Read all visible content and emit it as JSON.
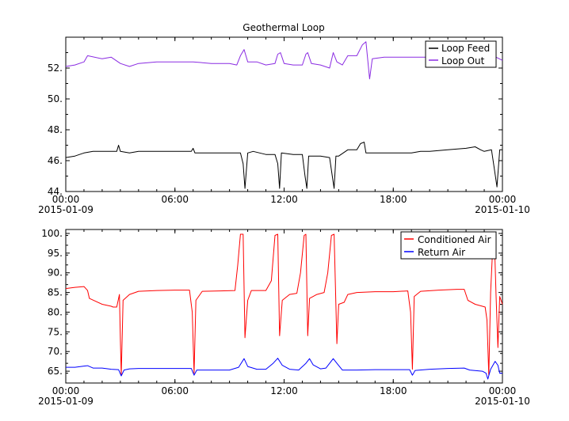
{
  "chart_data": [
    {
      "type": "line",
      "title": "Geothermal Loop",
      "xlabel": "",
      "ylabel": "",
      "x_ticks": [
        "00:00",
        "06:00",
        "12:00",
        "18:00",
        "00:00"
      ],
      "x_tick_dates": [
        "2015-01-09",
        "",
        "",
        "",
        "2015-01-10"
      ],
      "xlim_hours": [
        0,
        24
      ],
      "ylim": [
        44,
        54
      ],
      "y_ticks": [
        "44.",
        "46.",
        "48.",
        "50.",
        "52."
      ],
      "grid": false,
      "legend_position": "top-right",
      "series": [
        {
          "name": "Loop Feed",
          "color": "#000000",
          "points": [
            [
              0,
              46.2
            ],
            [
              0.5,
              46.3
            ],
            [
              1,
              46.5
            ],
            [
              1.5,
              46.6
            ],
            [
              2,
              46.6
            ],
            [
              2.8,
              46.6
            ],
            [
              2.9,
              47.0
            ],
            [
              3.0,
              46.6
            ],
            [
              3.5,
              46.5
            ],
            [
              4,
              46.6
            ],
            [
              5,
              46.6
            ],
            [
              6,
              46.6
            ],
            [
              6.9,
              46.6
            ],
            [
              7.0,
              46.8
            ],
            [
              7.1,
              46.5
            ],
            [
              8,
              46.5
            ],
            [
              9,
              46.5
            ],
            [
              9.6,
              46.5
            ],
            [
              9.75,
              45.8
            ],
            [
              9.85,
              44.2
            ],
            [
              10.0,
              46.5
            ],
            [
              10.3,
              46.6
            ],
            [
              11,
              46.4
            ],
            [
              11.5,
              46.4
            ],
            [
              11.65,
              45.8
            ],
            [
              11.75,
              44.2
            ],
            [
              11.85,
              46.5
            ],
            [
              12.5,
              46.4
            ],
            [
              13.0,
              46.4
            ],
            [
              13.15,
              45.0
            ],
            [
              13.25,
              44.2
            ],
            [
              13.35,
              46.3
            ],
            [
              14,
              46.3
            ],
            [
              14.5,
              46.2
            ],
            [
              14.65,
              45.0
            ],
            [
              14.75,
              44.2
            ],
            [
              14.85,
              46.3
            ],
            [
              15,
              46.3
            ],
            [
              15.5,
              46.7
            ],
            [
              16,
              46.7
            ],
            [
              16.2,
              47.1
            ],
            [
              16.4,
              47.2
            ],
            [
              16.5,
              46.5
            ],
            [
              17,
              46.5
            ],
            [
              18,
              46.5
            ],
            [
              19,
              46.5
            ],
            [
              19.5,
              46.6
            ],
            [
              20,
              46.6
            ],
            [
              21,
              46.7
            ],
            [
              22,
              46.8
            ],
            [
              22.5,
              46.9
            ],
            [
              22.8,
              46.7
            ],
            [
              23.0,
              46.6
            ],
            [
              23.4,
              46.7
            ],
            [
              23.55,
              45.5
            ],
            [
              23.7,
              44.3
            ],
            [
              23.85,
              46.7
            ],
            [
              24,
              46.7
            ]
          ]
        },
        {
          "name": "Loop Out",
          "color": "#8a2be2",
          "points": [
            [
              0,
              52.1
            ],
            [
              0.5,
              52.2
            ],
            [
              1,
              52.4
            ],
            [
              1.2,
              52.8
            ],
            [
              2,
              52.6
            ],
            [
              2.5,
              52.7
            ],
            [
              3,
              52.3
            ],
            [
              3.5,
              52.1
            ],
            [
              4,
              52.3
            ],
            [
              5,
              52.4
            ],
            [
              6,
              52.4
            ],
            [
              7,
              52.4
            ],
            [
              8,
              52.3
            ],
            [
              9,
              52.3
            ],
            [
              9.4,
              52.2
            ],
            [
              9.6,
              52.8
            ],
            [
              9.8,
              53.2
            ],
            [
              10.0,
              52.4
            ],
            [
              10.5,
              52.4
            ],
            [
              11,
              52.2
            ],
            [
              11.5,
              52.3
            ],
            [
              11.65,
              52.9
            ],
            [
              11.8,
              53.0
            ],
            [
              12.0,
              52.3
            ],
            [
              12.5,
              52.2
            ],
            [
              13,
              52.2
            ],
            [
              13.2,
              52.9
            ],
            [
              13.3,
              53.0
            ],
            [
              13.5,
              52.3
            ],
            [
              14,
              52.2
            ],
            [
              14.5,
              52.0
            ],
            [
              14.7,
              53.0
            ],
            [
              14.9,
              52.4
            ],
            [
              15.2,
              52.2
            ],
            [
              15.5,
              52.8
            ],
            [
              16,
              52.8
            ],
            [
              16.3,
              53.5
            ],
            [
              16.5,
              53.7
            ],
            [
              16.7,
              51.3
            ],
            [
              16.85,
              52.6
            ],
            [
              17.5,
              52.7
            ],
            [
              18,
              52.7
            ],
            [
              19,
              52.7
            ],
            [
              20,
              52.7
            ],
            [
              21,
              52.6
            ],
            [
              21.5,
              52.5
            ],
            [
              22,
              52.7
            ],
            [
              22.5,
              52.7
            ],
            [
              23,
              52.9
            ],
            [
              23.5,
              52.8
            ],
            [
              24,
              52.5
            ]
          ]
        }
      ]
    },
    {
      "type": "line",
      "title": "",
      "xlabel": "",
      "ylabel": "",
      "x_ticks": [
        "00:00",
        "06:00",
        "12:00",
        "18:00",
        "00:00"
      ],
      "x_tick_dates": [
        "2015-01-09",
        "",
        "",
        "",
        "2015-01-10"
      ],
      "xlim_hours": [
        0,
        24
      ],
      "ylim": [
        62,
        101
      ],
      "y_ticks": [
        "65.",
        "70.",
        "75.",
        "80.",
        "85.",
        "90.",
        "95.",
        "100."
      ],
      "grid": false,
      "legend_position": "top-right",
      "series": [
        {
          "name": "Conditioned Air",
          "color": "#ff0000",
          "points": [
            [
              0,
              86
            ],
            [
              0.5,
              86.3
            ],
            [
              1,
              86.5
            ],
            [
              1.2,
              85.5
            ],
            [
              1.3,
              83.5
            ],
            [
              2,
              82
            ],
            [
              2.5,
              81.5
            ],
            [
              2.6,
              81.3
            ],
            [
              2.8,
              81.3
            ],
            [
              2.95,
              84.5
            ],
            [
              3.0,
              73
            ],
            [
              3.05,
              64
            ],
            [
              3.15,
              83
            ],
            [
              3.5,
              84.5
            ],
            [
              4,
              85.3
            ],
            [
              5,
              85.5
            ],
            [
              6,
              85.6
            ],
            [
              6.8,
              85.6
            ],
            [
              6.95,
              80
            ],
            [
              7.05,
              64.5
            ],
            [
              7.15,
              83
            ],
            [
              7.5,
              85.3
            ],
            [
              8.5,
              85.4
            ],
            [
              9.3,
              85.5
            ],
            [
              9.45,
              92
            ],
            [
              9.6,
              99.8
            ],
            [
              9.75,
              99.8
            ],
            [
              9.85,
              73.5
            ],
            [
              10.0,
              83
            ],
            [
              10.2,
              85.5
            ],
            [
              11,
              85.5
            ],
            [
              11.3,
              88
            ],
            [
              11.5,
              99.5
            ],
            [
              11.65,
              99.8
            ],
            [
              11.75,
              74
            ],
            [
              11.9,
              83
            ],
            [
              12.3,
              84.5
            ],
            [
              12.7,
              84.8
            ],
            [
              12.9,
              90
            ],
            [
              13.1,
              99.5
            ],
            [
              13.2,
              99.8
            ],
            [
              13.3,
              74
            ],
            [
              13.4,
              83.5
            ],
            [
              13.8,
              84.5
            ],
            [
              14.2,
              85
            ],
            [
              14.4,
              90
            ],
            [
              14.6,
              99.5
            ],
            [
              14.75,
              99.8
            ],
            [
              14.9,
              72
            ],
            [
              15.0,
              82
            ],
            [
              15.3,
              82.5
            ],
            [
              15.5,
              84.5
            ],
            [
              16,
              85
            ],
            [
              17,
              85.2
            ],
            [
              18,
              85.2
            ],
            [
              18.8,
              85.4
            ],
            [
              18.95,
              80
            ],
            [
              19.05,
              65.5
            ],
            [
              19.15,
              84
            ],
            [
              19.5,
              85.3
            ],
            [
              20.5,
              85.6
            ],
            [
              21.5,
              85.8
            ],
            [
              21.9,
              85.8
            ],
            [
              22.1,
              83
            ],
            [
              22.5,
              82
            ],
            [
              22.9,
              81.5
            ],
            [
              23.05,
              81.3
            ],
            [
              23.15,
              78
            ],
            [
              23.25,
              64
            ],
            [
              23.35,
              85
            ],
            [
              23.45,
              95
            ],
            [
              23.55,
              99.5
            ],
            [
              23.65,
              84
            ],
            [
              23.75,
              71
            ],
            [
              23.85,
              84
            ],
            [
              24,
              82
            ]
          ]
        },
        {
          "name": "Return Air",
          "color": "#0000ff",
          "points": [
            [
              0,
              66
            ],
            [
              0.5,
              66
            ],
            [
              1,
              66.3
            ],
            [
              1.2,
              66.4
            ],
            [
              1.5,
              65.8
            ],
            [
              2,
              65.8
            ],
            [
              2.5,
              65.5
            ],
            [
              2.9,
              65.4
            ],
            [
              3.05,
              63.8
            ],
            [
              3.2,
              65.3
            ],
            [
              3.5,
              65.6
            ],
            [
              4,
              65.7
            ],
            [
              5,
              65.7
            ],
            [
              6,
              65.7
            ],
            [
              6.9,
              65.7
            ],
            [
              7.05,
              64
            ],
            [
              7.2,
              65.3
            ],
            [
              8,
              65.3
            ],
            [
              9,
              65.3
            ],
            [
              9.5,
              66
            ],
            [
              9.8,
              68.2
            ],
            [
              10.0,
              66.2
            ],
            [
              10.5,
              65.5
            ],
            [
              11,
              65.5
            ],
            [
              11.4,
              67
            ],
            [
              11.65,
              68.3
            ],
            [
              11.9,
              66.5
            ],
            [
              12.3,
              65.5
            ],
            [
              12.8,
              65.3
            ],
            [
              13.2,
              67
            ],
            [
              13.4,
              68.2
            ],
            [
              13.6,
              66.6
            ],
            [
              14,
              65.6
            ],
            [
              14.3,
              65.8
            ],
            [
              14.7,
              68.2
            ],
            [
              14.9,
              67
            ],
            [
              15.2,
              65.3
            ],
            [
              15.5,
              65.3
            ],
            [
              16,
              65.3
            ],
            [
              17,
              65.4
            ],
            [
              18,
              65.4
            ],
            [
              18.9,
              65.4
            ],
            [
              19.05,
              64
            ],
            [
              19.2,
              65.2
            ],
            [
              20,
              65.5
            ],
            [
              21,
              65.7
            ],
            [
              21.9,
              65.8
            ],
            [
              22.2,
              65.3
            ],
            [
              22.9,
              65
            ],
            [
              23.1,
              64.5
            ],
            [
              23.2,
              63
            ],
            [
              23.35,
              65.5
            ],
            [
              23.6,
              67.5
            ],
            [
              23.75,
              66.5
            ],
            [
              23.85,
              64.5
            ],
            [
              24,
              64.5
            ]
          ]
        }
      ]
    }
  ]
}
